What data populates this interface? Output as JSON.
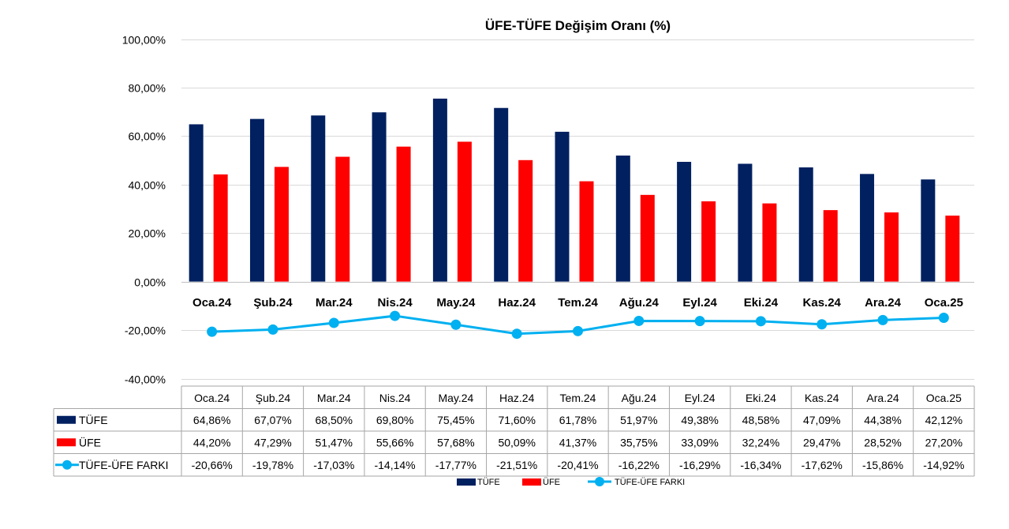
{
  "chart_data": {
    "type": "bar",
    "title": "ÜFE-TÜFE Değişim Oranı (%)",
    "xlabel": "",
    "ylabel": "",
    "ylim": [
      -40,
      100
    ],
    "yticks": [
      -40,
      -20,
      0,
      20,
      40,
      60,
      80,
      100
    ],
    "ytick_labels": [
      "-40,00%",
      "-20,00%",
      "0,00%",
      "20,00%",
      "40,00%",
      "60,00%",
      "80,00%",
      "100,00%"
    ],
    "grid": true,
    "legend_position": "bottom",
    "categories": [
      "Oca.24",
      "Şub.24",
      "Mar.24",
      "Nis.24",
      "May.24",
      "Haz.24",
      "Tem.24",
      "Ağu.24",
      "Eyl.24",
      "Eki.24",
      "Kas.24",
      "Ara.24",
      "Oca.25"
    ],
    "series": [
      {
        "name": "TÜFE",
        "kind": "bar",
        "color": "#002060",
        "values": [
          64.86,
          67.07,
          68.5,
          69.8,
          75.45,
          71.6,
          61.78,
          51.97,
          49.38,
          48.58,
          47.09,
          44.38,
          42.12
        ],
        "labels": [
          "64,86%",
          "67,07%",
          "68,50%",
          "69,80%",
          "75,45%",
          "71,60%",
          "61,78%",
          "51,97%",
          "49,38%",
          "48,58%",
          "47,09%",
          "44,38%",
          "42,12%"
        ]
      },
      {
        "name": "ÜFE",
        "kind": "bar",
        "color": "#FF0000",
        "values": [
          44.2,
          47.29,
          51.47,
          55.66,
          57.68,
          50.09,
          41.37,
          35.75,
          33.09,
          32.24,
          29.47,
          28.52,
          27.2
        ],
        "labels": [
          "44,20%",
          "47,29%",
          "51,47%",
          "55,66%",
          "57,68%",
          "50,09%",
          "41,37%",
          "35,75%",
          "33,09%",
          "32,24%",
          "29,47%",
          "28,52%",
          "27,20%"
        ]
      },
      {
        "name": "TÜFE-ÜFE FARKI",
        "kind": "line",
        "color": "#00B0F0",
        "values": [
          -20.66,
          -19.78,
          -17.03,
          -14.14,
          -17.77,
          -21.51,
          -20.41,
          -16.22,
          -16.29,
          -16.34,
          -17.62,
          -15.86,
          -14.92
        ],
        "labels": [
          "-20,66%",
          "-19,78%",
          "-17,03%",
          "-14,14%",
          "-17,77%",
          "-21,51%",
          "-20,41%",
          "-16,22%",
          "-16,29%",
          "-16,34%",
          "-17,62%",
          "-15,86%",
          "-14,92%"
        ]
      }
    ]
  }
}
